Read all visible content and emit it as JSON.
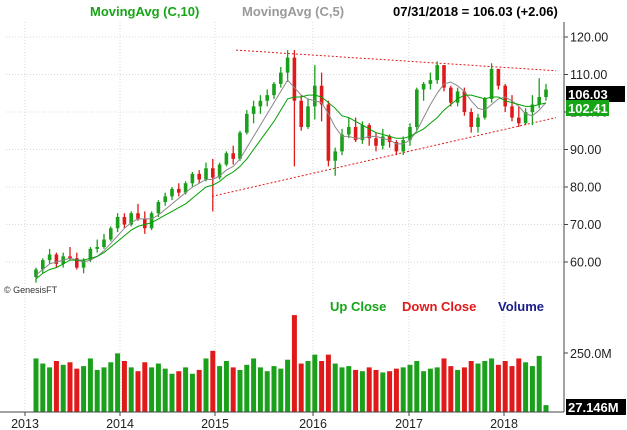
{
  "chart_data": {
    "type": "candlestick",
    "header": {
      "ma10_label": "MovingAvg (C,10)",
      "ma5_label": "MovingAvg (C,5)",
      "quote": "07/31/2018 = 106.03 (+2.06)"
    },
    "watermark": "© GenesisFT",
    "price_axis": {
      "ticks": [
        "120.00",
        "110.00",
        "100.00",
        "90.00",
        "80.00",
        "70.00",
        "60.00"
      ],
      "ylim": [
        52,
        124
      ],
      "last_price_label": "106.03",
      "ma_label": "102.41"
    },
    "volume_axis": {
      "ticks": [
        "250.0M"
      ],
      "last_volume_label": "27.146M"
    },
    "x_labels": [
      "2013",
      "2014",
      "2015",
      "2016",
      "2017",
      "2018"
    ],
    "legend": {
      "up": "Up Close",
      "down": "Down Close",
      "volume": "Volume"
    },
    "colors": {
      "up": "#1aa01a",
      "down": "#e01a1a",
      "ma10": "#00a000",
      "ma5": "#888888",
      "trend": "#e01a1a",
      "volume_label": "#1a1a8c"
    },
    "bars": [
      [
        56.0,
        58.5,
        54.5,
        58.0,
        210
      ],
      [
        58.0,
        61.0,
        57.0,
        60.5,
        190
      ],
      [
        60.5,
        63.5,
        59.5,
        62.0,
        175
      ],
      [
        62.0,
        62.5,
        58.5,
        59.5,
        200
      ],
      [
        59.5,
        62.5,
        58.5,
        61.5,
        185
      ],
      [
        61.5,
        64.0,
        60.5,
        61.0,
        195
      ],
      [
        61.0,
        62.5,
        58.0,
        58.5,
        170
      ],
      [
        58.5,
        61.0,
        57.0,
        60.5,
        180
      ],
      [
        60.5,
        64.0,
        60.0,
        63.5,
        210
      ],
      [
        63.5,
        66.0,
        62.5,
        64.0,
        165
      ],
      [
        64.0,
        67.5,
        63.5,
        66.0,
        175
      ],
      [
        66.0,
        69.5,
        65.5,
        69.0,
        195
      ],
      [
        69.0,
        73.0,
        68.0,
        72.0,
        230
      ],
      [
        72.0,
        73.0,
        69.0,
        70.0,
        200
      ],
      [
        70.0,
        73.5,
        69.5,
        73.0,
        175
      ],
      [
        73.0,
        75.5,
        71.0,
        71.5,
        160
      ],
      [
        71.5,
        73.5,
        67.5,
        69.0,
        195
      ],
      [
        69.0,
        73.5,
        68.5,
        73.0,
        175
      ],
      [
        73.0,
        76.5,
        72.0,
        76.0,
        190
      ],
      [
        76.0,
        78.5,
        75.0,
        77.5,
        170
      ],
      [
        77.5,
        80.0,
        76.5,
        79.5,
        150
      ],
      [
        79.5,
        81.0,
        77.5,
        78.5,
        160
      ],
      [
        78.5,
        81.5,
        78.0,
        81.0,
        175
      ],
      [
        81.0,
        84.0,
        80.0,
        83.5,
        150
      ],
      [
        83.5,
        84.5,
        81.0,
        82.0,
        165
      ],
      [
        82.0,
        86.5,
        81.5,
        85.0,
        210
      ],
      [
        85.0,
        87.5,
        73.5,
        82.5,
        240
      ],
      [
        82.5,
        86.5,
        82.0,
        86.0,
        180
      ],
      [
        86.0,
        89.5,
        85.5,
        89.0,
        200
      ],
      [
        89.0,
        91.0,
        86.0,
        87.5,
        175
      ],
      [
        87.5,
        95.0,
        87.0,
        94.5,
        165
      ],
      [
        94.5,
        100.5,
        94.0,
        99.5,
        185
      ],
      [
        99.5,
        103.0,
        97.0,
        101.5,
        210
      ],
      [
        101.5,
        104.5,
        99.5,
        103.0,
        175
      ],
      [
        103.0,
        106.0,
        101.5,
        104.5,
        160
      ],
      [
        104.5,
        108.0,
        103.5,
        107.5,
        180
      ],
      [
        107.5,
        112.0,
        106.5,
        110.5,
        170
      ],
      [
        110.5,
        116.5,
        108.0,
        114.5,
        205
      ],
      [
        114.5,
        116.5,
        85.5,
        103.0,
        380
      ],
      [
        103.0,
        104.5,
        95.0,
        96.0,
        190
      ],
      [
        96.0,
        103.5,
        95.5,
        101.5,
        200
      ],
      [
        101.5,
        112.5,
        98.0,
        107.0,
        225
      ],
      [
        107.0,
        110.5,
        97.5,
        102.0,
        200
      ],
      [
        102.0,
        103.0,
        85.5,
        87.0,
        225
      ],
      [
        87.0,
        90.5,
        83.0,
        89.5,
        190
      ],
      [
        89.5,
        95.5,
        88.5,
        94.0,
        175
      ],
      [
        94.0,
        98.5,
        93.0,
        96.0,
        180
      ],
      [
        96.0,
        98.5,
        92.0,
        92.5,
        165
      ],
      [
        92.5,
        97.5,
        91.5,
        96.5,
        160
      ],
      [
        96.5,
        97.0,
        91.0,
        93.0,
        175
      ],
      [
        93.0,
        94.5,
        89.5,
        91.0,
        165
      ],
      [
        91.0,
        95.5,
        90.0,
        93.5,
        155
      ],
      [
        93.5,
        94.0,
        90.5,
        92.0,
        160
      ],
      [
        92.0,
        92.5,
        88.5,
        89.5,
        170
      ],
      [
        89.5,
        93.5,
        88.5,
        92.5,
        175
      ],
      [
        92.5,
        97.0,
        91.0,
        96.0,
        185
      ],
      [
        96.0,
        106.5,
        95.0,
        106.0,
        200
      ],
      [
        106.0,
        108.0,
        103.0,
        107.5,
        160
      ],
      [
        107.5,
        110.5,
        106.0,
        108.5,
        170
      ],
      [
        108.5,
        113.5,
        107.5,
        112.5,
        175
      ],
      [
        112.5,
        112.5,
        105.5,
        106.5,
        210
      ],
      [
        106.5,
        107.0,
        101.5,
        102.5,
        180
      ],
      [
        102.5,
        106.5,
        101.5,
        105.5,
        165
      ],
      [
        105.5,
        106.5,
        99.0,
        100.0,
        175
      ],
      [
        100.0,
        101.0,
        94.5,
        96.0,
        200
      ],
      [
        96.0,
        99.5,
        94.5,
        98.5,
        190
      ],
      [
        98.5,
        104.0,
        98.0,
        103.5,
        200
      ],
      [
        103.5,
        113.0,
        102.5,
        111.5,
        210
      ],
      [
        111.5,
        111.5,
        106.0,
        107.0,
        185
      ],
      [
        107.0,
        107.5,
        100.0,
        101.5,
        200
      ],
      [
        101.5,
        104.5,
        97.5,
        98.5,
        180
      ],
      [
        98.5,
        101.5,
        96.0,
        97.0,
        210
      ],
      [
        97.0,
        101.0,
        96.5,
        100.0,
        195
      ],
      [
        100.0,
        104.5,
        96.5,
        102.0,
        180
      ],
      [
        102.0,
        109.0,
        101.0,
        104.0,
        220
      ],
      [
        104.0,
        107.5,
        103.0,
        106.0,
        27
      ]
    ],
    "ma10": [
      55.5,
      57.0,
      58.0,
      58.5,
      59.5,
      60.5,
      60.5,
      60.5,
      61.0,
      61.5,
      62.5,
      64.0,
      65.5,
      67.0,
      68.5,
      69.5,
      70.0,
      70.5,
      71.5,
      72.5,
      73.5,
      74.5,
      75.5,
      77.0,
      78.5,
      80.0,
      80.5,
      81.5,
      83.0,
      84.0,
      85.5,
      87.5,
      90.0,
      92.5,
      95.0,
      97.5,
      100.5,
      103.5,
      104.0,
      104.0,
      104.5,
      104.5,
      104.0,
      102.5,
      101.0,
      99.0,
      98.5,
      97.5,
      96.5,
      95.5,
      94.5,
      94.0,
      93.5,
      93.0,
      93.0,
      93.5,
      94.5,
      95.5,
      97.0,
      98.5,
      100.5,
      102.0,
      103.5,
      104.5,
      104.5,
      104.0,
      103.5,
      104.0,
      104.0,
      103.0,
      102.5,
      102.0,
      101.5,
      101.5,
      102.0,
      102.41
    ],
    "ma5": [
      56.5,
      58.0,
      59.5,
      60.0,
      60.5,
      61.0,
      60.5,
      60.0,
      60.5,
      61.5,
      63.0,
      65.0,
      67.0,
      69.0,
      70.5,
      71.5,
      71.5,
      71.5,
      72.5,
      74.0,
      75.5,
      77.0,
      78.5,
      80.0,
      81.0,
      82.0,
      82.0,
      83.0,
      84.5,
      85.5,
      87.5,
      90.5,
      93.5,
      96.5,
      99.5,
      102.5,
      105.5,
      108.5,
      106.5,
      104.5,
      103.5,
      103.0,
      102.5,
      99.5,
      96.0,
      93.5,
      93.5,
      93.0,
      93.0,
      93.5,
      93.5,
      93.0,
      92.5,
      91.5,
      91.5,
      92.5,
      95.0,
      98.5,
      102.0,
      105.0,
      107.5,
      108.0,
      107.0,
      105.5,
      103.0,
      101.0,
      100.5,
      102.0,
      103.5,
      104.0,
      103.0,
      101.5,
      99.5,
      99.0,
      100.5,
      102.5
    ]
  }
}
